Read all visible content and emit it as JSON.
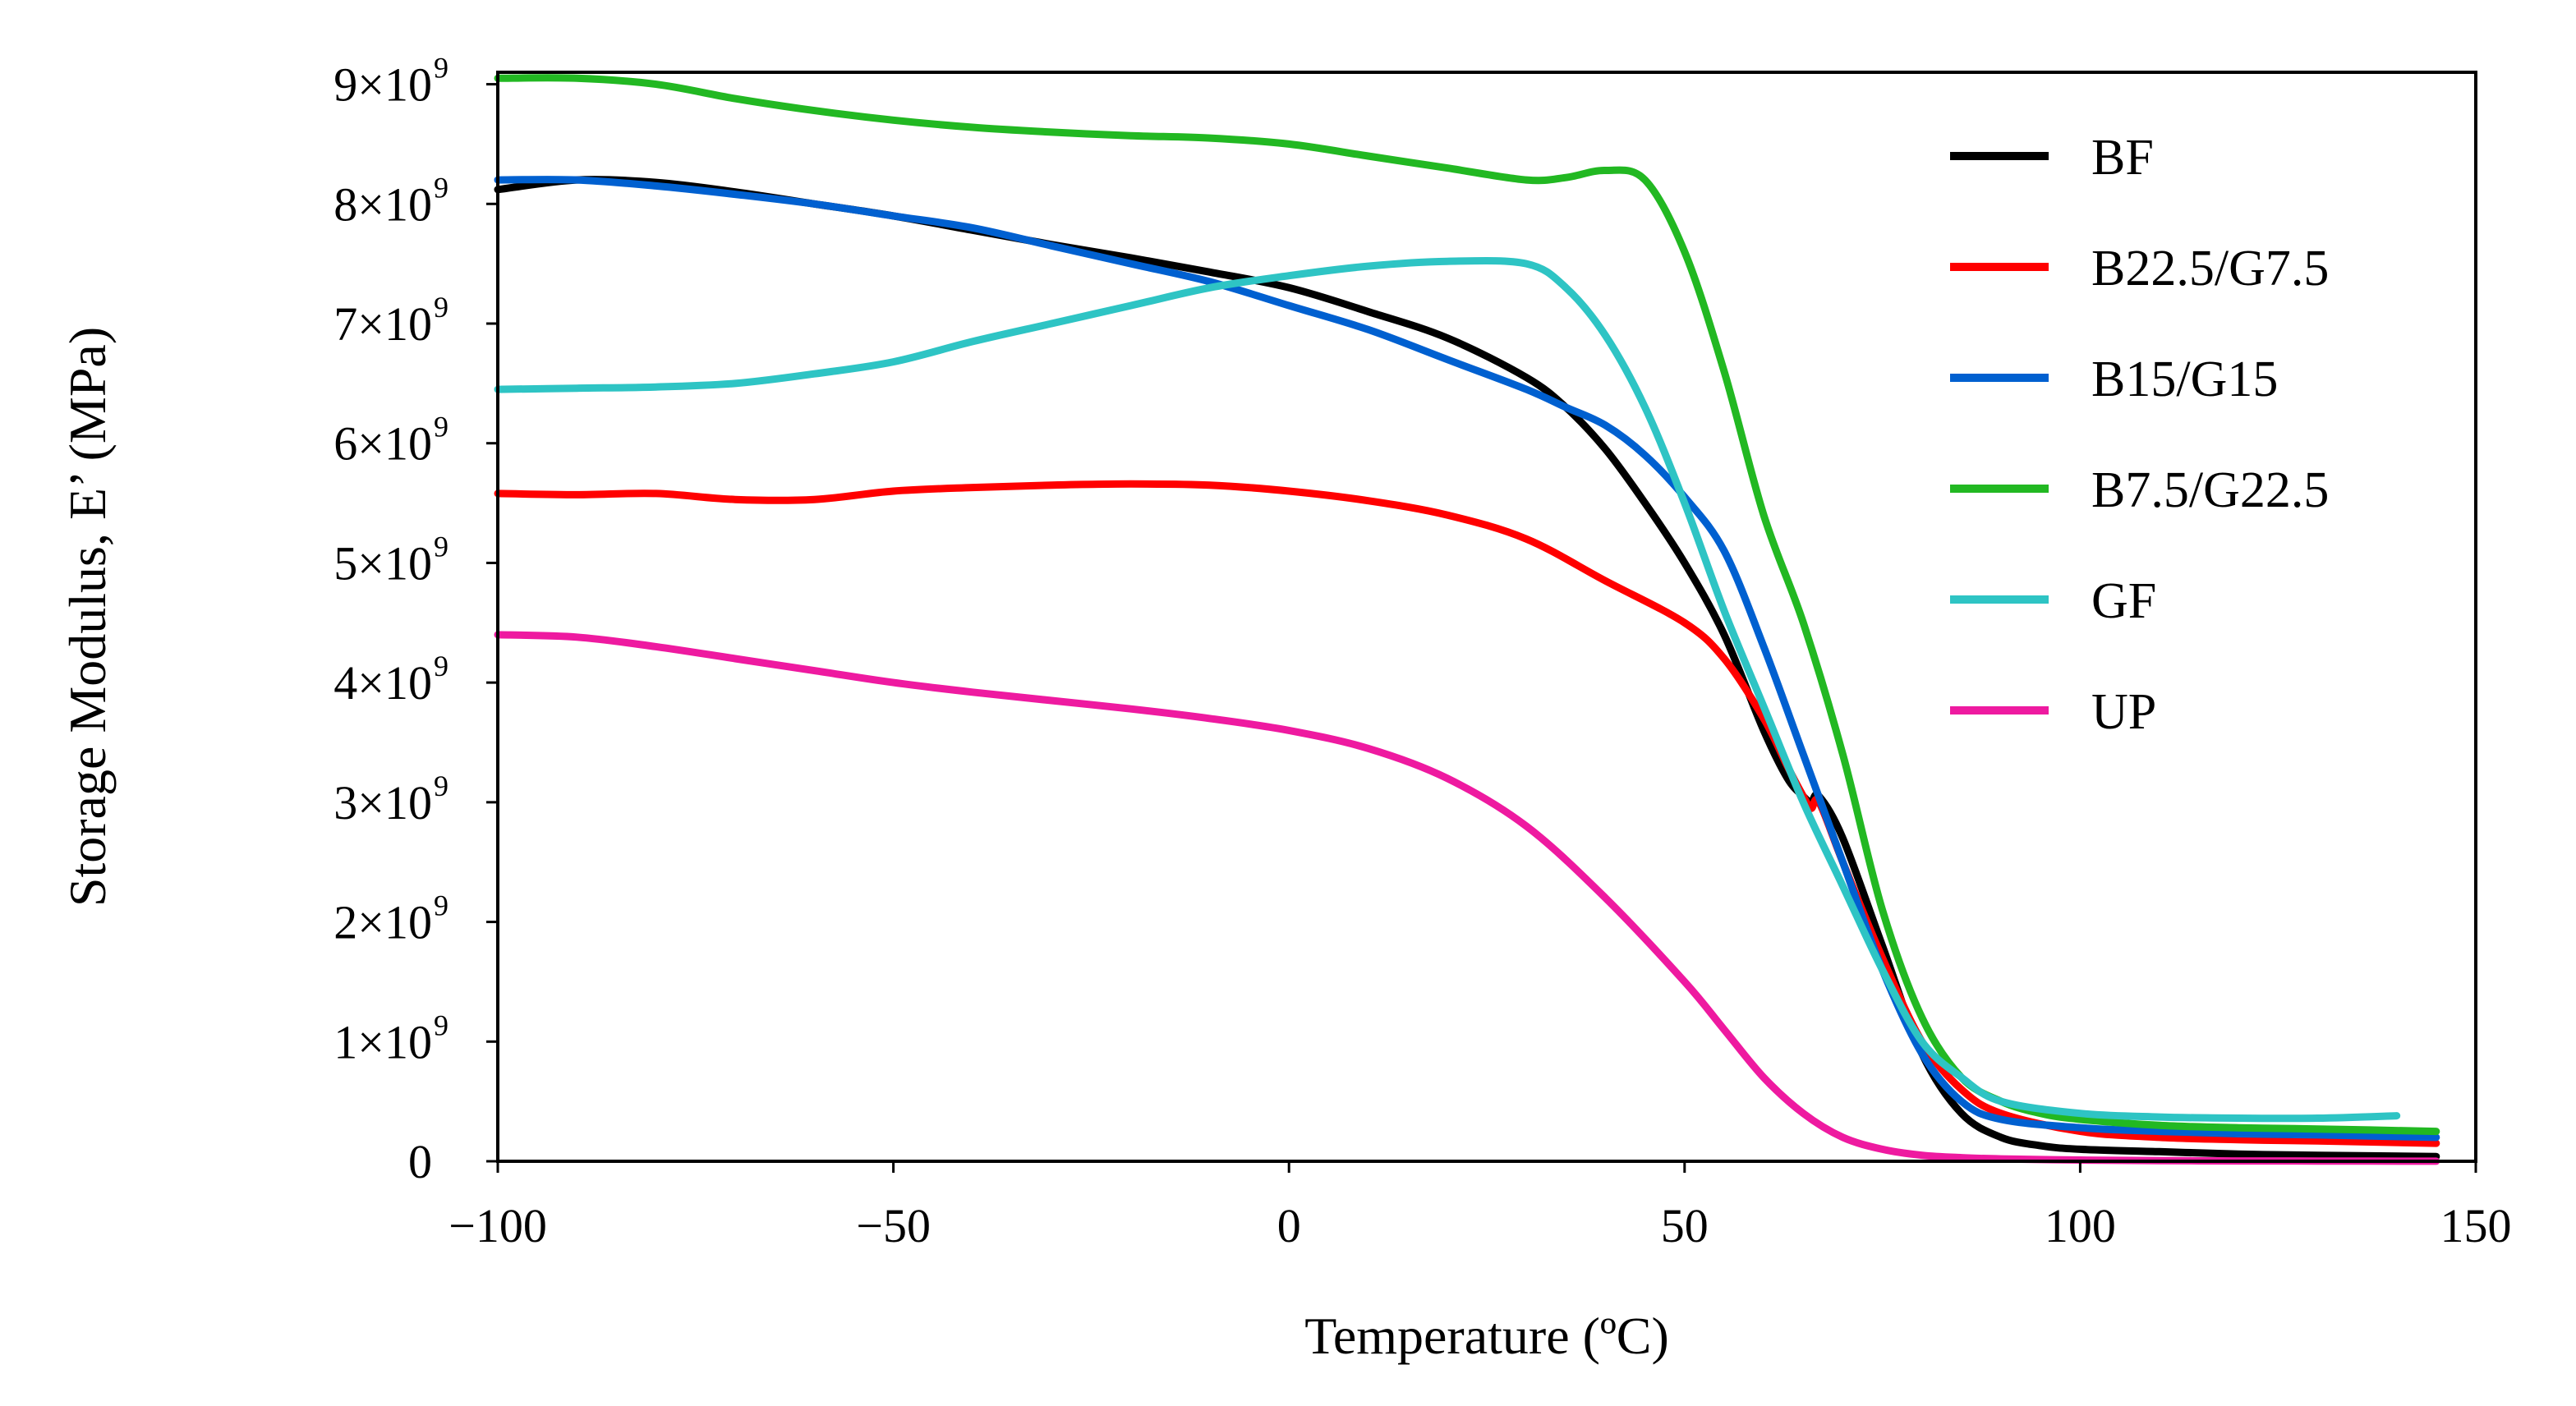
{
  "chart_data": {
    "type": "line",
    "title": "",
    "xlabel": "Temperature (ºC)",
    "ylabel": "Storage Modulus, E’ (MPa)",
    "xlim": [
      -100,
      150
    ],
    "ylim": [
      0,
      9100000000.0
    ],
    "x_ticks": [
      -100,
      -50,
      0,
      50,
      100,
      150
    ],
    "x_tick_labels": [
      "−100",
      "−50",
      "0",
      "50",
      "100",
      "150"
    ],
    "y_ticks": [
      0,
      1000000000.0,
      2000000000.0,
      3000000000.0,
      4000000000.0,
      5000000000.0,
      6000000000.0,
      7000000000.0,
      8000000000.0,
      9000000000.0
    ],
    "y_tick_labels": [
      {
        "base": "0",
        "exp": ""
      },
      {
        "base": "1×10",
        "exp": "9"
      },
      {
        "base": "2×10",
        "exp": "9"
      },
      {
        "base": "3×10",
        "exp": "9"
      },
      {
        "base": "4×10",
        "exp": "9"
      },
      {
        "base": "5×10",
        "exp": "9"
      },
      {
        "base": "6×10",
        "exp": "9"
      },
      {
        "base": "7×10",
        "exp": "9"
      },
      {
        "base": "8×10",
        "exp": "9"
      },
      {
        "base": "9×10",
        "exp": "9"
      }
    ],
    "legend_position": "top-right",
    "grid": false,
    "series": [
      {
        "name": "BF",
        "color": "#000000",
        "x": [
          -100,
          -90,
          -80,
          -70,
          -60,
          -50,
          -40,
          -30,
          -20,
          -10,
          0,
          10,
          20,
          30,
          35,
          40,
          45,
          50,
          55,
          60,
          63,
          65,
          66,
          67,
          70,
          75,
          80,
          85,
          90,
          95,
          100,
          110,
          120,
          130,
          145
        ],
        "y": [
          8120000000.0,
          8200000000.0,
          8180000000.0,
          8100000000.0,
          8000000000.0,
          7900000000.0,
          7780000000.0,
          7660000000.0,
          7550000000.0,
          7430000000.0,
          7300000000.0,
          7100000000.0,
          6880000000.0,
          6550000000.0,
          6300000000.0,
          5950000000.0,
          5500000000.0,
          5000000000.0,
          4400000000.0,
          3600000000.0,
          3200000000.0,
          3050000000.0,
          3000000000.0,
          3050000000.0,
          2700000000.0,
          1800000000.0,
          900000000.0,
          400000000.0,
          200000000.0,
          130000000.0,
          100000000.0,
          80000000.0,
          60000000.0,
          50000000.0,
          40000000.0
        ]
      },
      {
        "name": "B22.5/G7.5",
        "color": "#ff0000",
        "x": [
          -100,
          -90,
          -80,
          -70,
          -60,
          -50,
          -40,
          -30,
          -20,
          -10,
          0,
          10,
          20,
          30,
          40,
          50,
          55,
          60,
          63,
          65,
          66,
          67,
          70,
          75,
          80,
          85,
          90,
          100,
          110,
          120,
          130,
          145
        ],
        "y": [
          5580000000.0,
          5570000000.0,
          5580000000.0,
          5530000000.0,
          5530000000.0,
          5600000000.0,
          5630000000.0,
          5650000000.0,
          5660000000.0,
          5650000000.0,
          5600000000.0,
          5520000000.0,
          5400000000.0,
          5200000000.0,
          4850000000.0,
          4500000000.0,
          4200000000.0,
          3700000000.0,
          3300000000.0,
          3050000000.0,
          2950000000.0,
          3000000000.0,
          2500000000.0,
          1700000000.0,
          1000000000.0,
          600000000.0,
          400000000.0,
          250000000.0,
          200000000.0,
          180000000.0,
          170000000.0,
          150000000.0
        ]
      },
      {
        "name": "B15/G15",
        "color": "#0060d0",
        "x": [
          -100,
          -90,
          -80,
          -70,
          -60,
          -50,
          -40,
          -30,
          -20,
          -10,
          0,
          10,
          20,
          30,
          35,
          40,
          45,
          50,
          55,
          60,
          65,
          70,
          75,
          80,
          85,
          90,
          100,
          110,
          120,
          130,
          145
        ],
        "y": [
          8200000000.0,
          8200000000.0,
          8150000000.0,
          8080000000.0,
          8000000000.0,
          7900000000.0,
          7800000000.0,
          7650000000.0,
          7500000000.0,
          7350000000.0,
          7150000000.0,
          6950000000.0,
          6700000000.0,
          6450000000.0,
          6300000000.0,
          6150000000.0,
          5900000000.0,
          5550000000.0,
          5100000000.0,
          4300000000.0,
          3400000000.0,
          2500000000.0,
          1600000000.0,
          900000000.0,
          500000000.0,
          350000000.0,
          280000000.0,
          250000000.0,
          230000000.0,
          220000000.0,
          200000000.0
        ]
      },
      {
        "name": "B7.5/G22.5",
        "color": "#22b822",
        "x": [
          -100,
          -90,
          -80,
          -70,
          -60,
          -50,
          -40,
          -30,
          -20,
          -10,
          0,
          10,
          20,
          30,
          35,
          40,
          45,
          50,
          55,
          60,
          65,
          70,
          75,
          80,
          85,
          90,
          95,
          100,
          110,
          120,
          130,
          145
        ],
        "y": [
          9050000000.0,
          9050000000.0,
          9000000000.0,
          8880000000.0,
          8780000000.0,
          8700000000.0,
          8640000000.0,
          8600000000.0,
          8570000000.0,
          8550000000.0,
          8500000000.0,
          8400000000.0,
          8300000000.0,
          8200000000.0,
          8220000000.0,
          8280000000.0,
          8200000000.0,
          7600000000.0,
          6600000000.0,
          5400000000.0,
          4500000000.0,
          3400000000.0,
          2100000000.0,
          1200000000.0,
          700000000.0,
          500000000.0,
          400000000.0,
          350000000.0,
          300000000.0,
          280000000.0,
          270000000.0,
          250000000.0
        ]
      },
      {
        "name": "GF",
        "color": "#2ec4c4",
        "x": [
          -100,
          -90,
          -80,
          -70,
          -60,
          -50,
          -40,
          -30,
          -20,
          -10,
          0,
          10,
          20,
          30,
          35,
          40,
          45,
          50,
          55,
          60,
          65,
          70,
          75,
          80,
          85,
          90,
          100,
          110,
          120,
          130,
          140
        ],
        "y": [
          6450000000.0,
          6460000000.0,
          6470000000.0,
          6500000000.0,
          6580000000.0,
          6680000000.0,
          6850000000.0,
          7000000000.0,
          7150000000.0,
          7300000000.0,
          7400000000.0,
          7480000000.0,
          7520000000.0,
          7500000000.0,
          7300000000.0,
          6900000000.0,
          6300000000.0,
          5500000000.0,
          4600000000.0,
          3800000000.0,
          3000000000.0,
          2300000000.0,
          1600000000.0,
          1000000000.0,
          700000000.0,
          500000000.0,
          400000000.0,
          370000000.0,
          360000000.0,
          360000000.0,
          380000000.0
        ]
      },
      {
        "name": "UP",
        "color": "#ee1aa0",
        "x": [
          -100,
          -90,
          -80,
          -70,
          -60,
          -50,
          -40,
          -30,
          -20,
          -10,
          0,
          10,
          20,
          30,
          40,
          50,
          55,
          60,
          65,
          70,
          75,
          80,
          85,
          90,
          100,
          110,
          120,
          130,
          145
        ],
        "y": [
          4400000000.0,
          4380000000.0,
          4300000000.0,
          4200000000.0,
          4100000000.0,
          4000000000.0,
          3920000000.0,
          3850000000.0,
          3780000000.0,
          3700000000.0,
          3600000000.0,
          3450000000.0,
          3200000000.0,
          2800000000.0,
          2200000000.0,
          1500000000.0,
          1100000000.0,
          700000000.0,
          400000000.0,
          200000000.0,
          100000000.0,
          50000000.0,
          30000000.0,
          20000000.0,
          10000000.0,
          5000000.0,
          3000000.0,
          2000000.0,
          1000000.0
        ]
      }
    ]
  }
}
